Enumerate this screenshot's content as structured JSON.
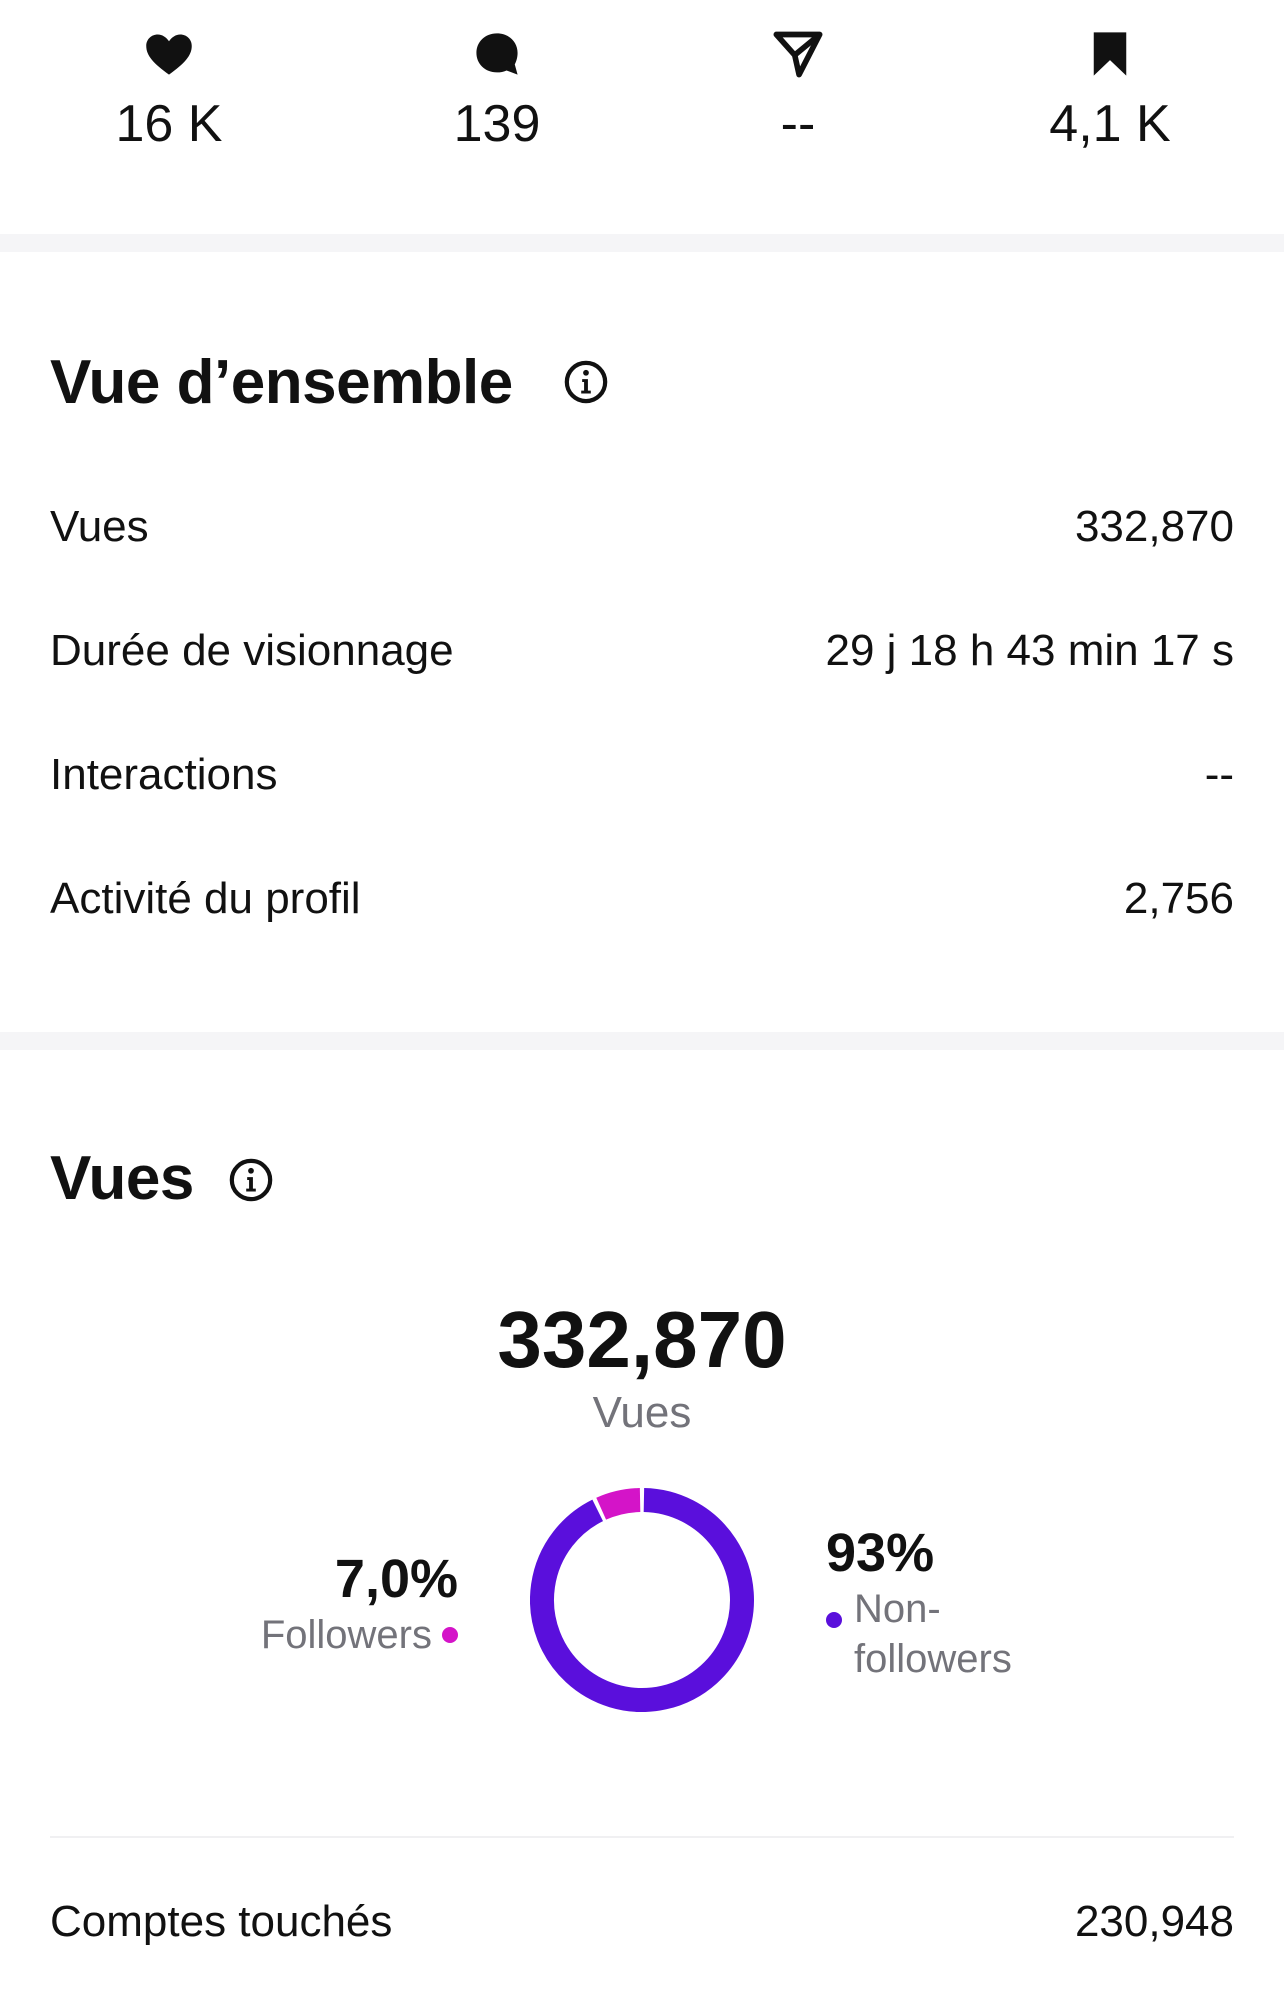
{
  "stats": {
    "likes": {
      "icon": "heart-icon",
      "value": "16 K"
    },
    "comments": {
      "icon": "comment-icon",
      "value": "139"
    },
    "shares": {
      "icon": "send-icon",
      "value": "--"
    },
    "saves": {
      "icon": "bookmark-icon",
      "value": "4,1 K"
    }
  },
  "overview": {
    "title": "Vue d’ensemble",
    "rows": [
      {
        "label": "Vues",
        "value": "332,870"
      },
      {
        "label": "Durée de visionnage",
        "value": "29 j 18 h 43 min 17 s"
      },
      {
        "label": "Interactions",
        "value": "--"
      },
      {
        "label": "Activité du profil",
        "value": "2,756"
      }
    ]
  },
  "views": {
    "title": "Vues",
    "total": "332,870",
    "caption": "Vues",
    "followers": {
      "percent": "7,0%",
      "label": "Followers",
      "fraction": 0.07
    },
    "non_followers": {
      "percent": "93%",
      "label": "Non-followers",
      "fraction": 0.93
    }
  },
  "accounts": {
    "label": "Comptes touchés",
    "value": "230,948"
  },
  "colors": {
    "followers": "#d414c8",
    "non_followers": "#5a0fdc",
    "text": "#111111",
    "muted": "#73737a"
  }
}
